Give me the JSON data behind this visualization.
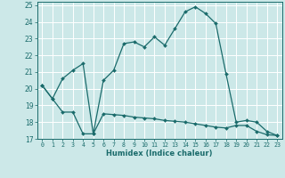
{
  "xlabel": "Humidex (Indice chaleur)",
  "bg_color": "#cce8e8",
  "grid_color": "#ffffff",
  "line_color": "#1a6b6b",
  "xlim": [
    -0.5,
    23.5
  ],
  "ylim": [
    17,
    25.2
  ],
  "yticks": [
    17,
    18,
    19,
    20,
    21,
    22,
    23,
    24,
    25
  ],
  "xticks": [
    0,
    1,
    2,
    3,
    4,
    5,
    6,
    7,
    8,
    9,
    10,
    11,
    12,
    13,
    14,
    15,
    16,
    17,
    18,
    19,
    20,
    21,
    22,
    23
  ],
  "curve1_x": [
    0,
    1,
    2,
    3,
    4,
    5,
    6,
    7,
    8,
    9,
    10,
    11,
    12,
    13,
    14,
    15,
    16,
    17,
    18,
    19,
    20,
    21,
    22,
    23
  ],
  "curve1_y": [
    20.2,
    19.4,
    18.6,
    18.6,
    17.3,
    17.3,
    18.5,
    18.45,
    18.4,
    18.3,
    18.25,
    18.2,
    18.1,
    18.05,
    18.0,
    17.9,
    17.8,
    17.7,
    17.65,
    17.8,
    17.8,
    17.45,
    17.25,
    17.2
  ],
  "curve2_x": [
    0,
    1,
    2,
    3,
    4,
    5,
    6,
    7,
    8,
    9,
    10,
    11,
    12,
    13,
    14,
    15,
    16,
    17,
    18,
    19,
    20,
    21,
    22,
    23
  ],
  "curve2_y": [
    20.2,
    19.4,
    20.6,
    21.1,
    21.5,
    17.3,
    20.5,
    21.1,
    22.7,
    22.8,
    22.5,
    23.1,
    22.6,
    23.6,
    24.6,
    24.9,
    24.5,
    23.9,
    20.9,
    18.0,
    18.1,
    18.0,
    17.45,
    17.2
  ]
}
